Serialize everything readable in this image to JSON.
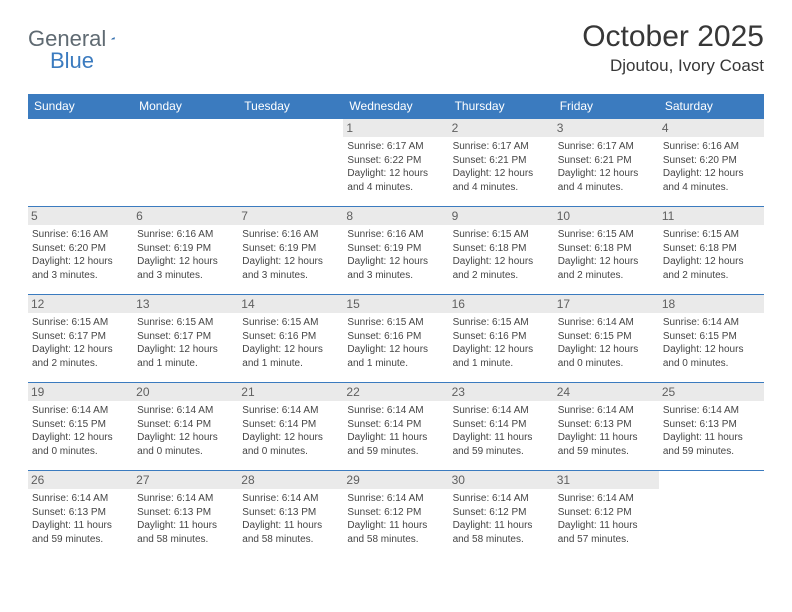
{
  "logo": {
    "text_gray": "General",
    "text_blue": "Blue"
  },
  "title": "October 2025",
  "location": "Djoutou, Ivory Coast",
  "colors": {
    "header_bg": "#3b7bbf",
    "header_text": "#ffffff",
    "daynum_bg": "#eaeaea",
    "daynum_text": "#606060",
    "cell_border": "#3b7bbf",
    "info_text": "#454545",
    "title_text": "#373737",
    "logo_gray": "#5f6a72",
    "logo_blue": "#3b7bbf"
  },
  "day_headers": [
    "Sunday",
    "Monday",
    "Tuesday",
    "Wednesday",
    "Thursday",
    "Friday",
    "Saturday"
  ],
  "weeks": [
    [
      null,
      null,
      null,
      {
        "n": "1",
        "sr": "6:17 AM",
        "ss": "6:22 PM",
        "dl": "12 hours and 4 minutes."
      },
      {
        "n": "2",
        "sr": "6:17 AM",
        "ss": "6:21 PM",
        "dl": "12 hours and 4 minutes."
      },
      {
        "n": "3",
        "sr": "6:17 AM",
        "ss": "6:21 PM",
        "dl": "12 hours and 4 minutes."
      },
      {
        "n": "4",
        "sr": "6:16 AM",
        "ss": "6:20 PM",
        "dl": "12 hours and 4 minutes."
      }
    ],
    [
      {
        "n": "5",
        "sr": "6:16 AM",
        "ss": "6:20 PM",
        "dl": "12 hours and 3 minutes."
      },
      {
        "n": "6",
        "sr": "6:16 AM",
        "ss": "6:19 PM",
        "dl": "12 hours and 3 minutes."
      },
      {
        "n": "7",
        "sr": "6:16 AM",
        "ss": "6:19 PM",
        "dl": "12 hours and 3 minutes."
      },
      {
        "n": "8",
        "sr": "6:16 AM",
        "ss": "6:19 PM",
        "dl": "12 hours and 3 minutes."
      },
      {
        "n": "9",
        "sr": "6:15 AM",
        "ss": "6:18 PM",
        "dl": "12 hours and 2 minutes."
      },
      {
        "n": "10",
        "sr": "6:15 AM",
        "ss": "6:18 PM",
        "dl": "12 hours and 2 minutes."
      },
      {
        "n": "11",
        "sr": "6:15 AM",
        "ss": "6:18 PM",
        "dl": "12 hours and 2 minutes."
      }
    ],
    [
      {
        "n": "12",
        "sr": "6:15 AM",
        "ss": "6:17 PM",
        "dl": "12 hours and 2 minutes."
      },
      {
        "n": "13",
        "sr": "6:15 AM",
        "ss": "6:17 PM",
        "dl": "12 hours and 1 minute."
      },
      {
        "n": "14",
        "sr": "6:15 AM",
        "ss": "6:16 PM",
        "dl": "12 hours and 1 minute."
      },
      {
        "n": "15",
        "sr": "6:15 AM",
        "ss": "6:16 PM",
        "dl": "12 hours and 1 minute."
      },
      {
        "n": "16",
        "sr": "6:15 AM",
        "ss": "6:16 PM",
        "dl": "12 hours and 1 minute."
      },
      {
        "n": "17",
        "sr": "6:14 AM",
        "ss": "6:15 PM",
        "dl": "12 hours and 0 minutes."
      },
      {
        "n": "18",
        "sr": "6:14 AM",
        "ss": "6:15 PM",
        "dl": "12 hours and 0 minutes."
      }
    ],
    [
      {
        "n": "19",
        "sr": "6:14 AM",
        "ss": "6:15 PM",
        "dl": "12 hours and 0 minutes."
      },
      {
        "n": "20",
        "sr": "6:14 AM",
        "ss": "6:14 PM",
        "dl": "12 hours and 0 minutes."
      },
      {
        "n": "21",
        "sr": "6:14 AM",
        "ss": "6:14 PM",
        "dl": "12 hours and 0 minutes."
      },
      {
        "n": "22",
        "sr": "6:14 AM",
        "ss": "6:14 PM",
        "dl": "11 hours and 59 minutes."
      },
      {
        "n": "23",
        "sr": "6:14 AM",
        "ss": "6:14 PM",
        "dl": "11 hours and 59 minutes."
      },
      {
        "n": "24",
        "sr": "6:14 AM",
        "ss": "6:13 PM",
        "dl": "11 hours and 59 minutes."
      },
      {
        "n": "25",
        "sr": "6:14 AM",
        "ss": "6:13 PM",
        "dl": "11 hours and 59 minutes."
      }
    ],
    [
      {
        "n": "26",
        "sr": "6:14 AM",
        "ss": "6:13 PM",
        "dl": "11 hours and 59 minutes."
      },
      {
        "n": "27",
        "sr": "6:14 AM",
        "ss": "6:13 PM",
        "dl": "11 hours and 58 minutes."
      },
      {
        "n": "28",
        "sr": "6:14 AM",
        "ss": "6:13 PM",
        "dl": "11 hours and 58 minutes."
      },
      {
        "n": "29",
        "sr": "6:14 AM",
        "ss": "6:12 PM",
        "dl": "11 hours and 58 minutes."
      },
      {
        "n": "30",
        "sr": "6:14 AM",
        "ss": "6:12 PM",
        "dl": "11 hours and 58 minutes."
      },
      {
        "n": "31",
        "sr": "6:14 AM",
        "ss": "6:12 PM",
        "dl": "11 hours and 57 minutes."
      },
      null
    ]
  ],
  "labels": {
    "sunrise": "Sunrise: ",
    "sunset": "Sunset: ",
    "daylight": "Daylight: "
  }
}
